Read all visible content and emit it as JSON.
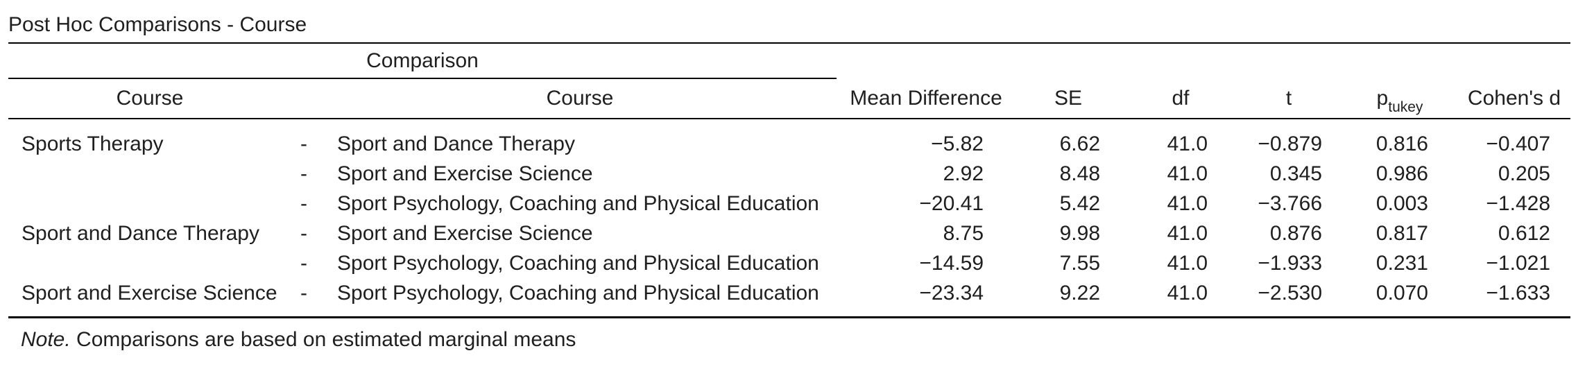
{
  "title": "Post Hoc Comparisons - Course",
  "group_header": "Comparison",
  "headers": {
    "course1": "Course",
    "course2": "Course",
    "mean_diff": "Mean Difference",
    "se": "SE",
    "df": "df",
    "t": "t",
    "p_main": "p",
    "p_sub": "tukey",
    "d": "Cohen's d"
  },
  "rows": [
    {
      "c1": "Sports Therapy",
      "dash": "-",
      "c2": "Sport and Dance Therapy",
      "md": "−5.82",
      "se": "6.62",
      "df": "41.0",
      "t": "−0.879",
      "p": "0.816",
      "d": "−0.407"
    },
    {
      "c1": "",
      "dash": "-",
      "c2": "Sport and Exercise Science",
      "md": "2.92",
      "se": "8.48",
      "df": "41.0",
      "t": "0.345",
      "p": "0.986",
      "d": "0.205"
    },
    {
      "c1": "",
      "dash": "-",
      "c2": "Sport Psychology, Coaching and Physical Education",
      "md": "−20.41",
      "se": "5.42",
      "df": "41.0",
      "t": "−3.766",
      "p": "0.003",
      "d": "−1.428"
    },
    {
      "c1": "Sport and Dance Therapy",
      "dash": "-",
      "c2": "Sport and Exercise Science",
      "md": "8.75",
      "se": "9.98",
      "df": "41.0",
      "t": "0.876",
      "p": "0.817",
      "d": "0.612"
    },
    {
      "c1": "",
      "dash": "-",
      "c2": "Sport Psychology, Coaching and Physical Education",
      "md": "−14.59",
      "se": "7.55",
      "df": "41.0",
      "t": "−1.933",
      "p": "0.231",
      "d": "−1.021"
    },
    {
      "c1": "Sport and Exercise Science",
      "dash": "-",
      "c2": "Sport Psychology, Coaching and Physical Education",
      "md": "−23.34",
      "se": "9.22",
      "df": "41.0",
      "t": "−2.530",
      "p": "0.070",
      "d": "−1.633"
    }
  ],
  "note": {
    "label": "Note.",
    "text": " Comparisons are based on estimated marginal means"
  }
}
